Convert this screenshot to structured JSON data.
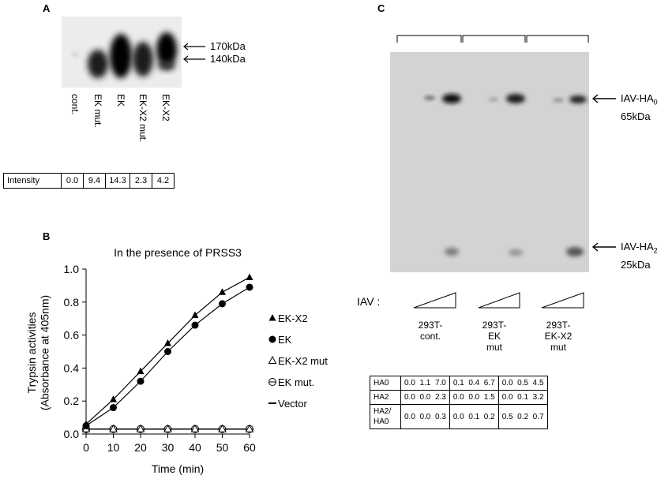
{
  "panelA": {
    "label": "A",
    "markers": [
      "170kDa",
      "140kDa"
    ],
    "lanes": [
      "cont.",
      "EK mut.",
      "EK",
      "EK-X2 mut.",
      "EK-X2"
    ],
    "intensity_label": "Intensity",
    "intensity_values": [
      "0.0",
      "9.4",
      "14.3",
      "2.3",
      "4.2"
    ]
  },
  "panelB": {
    "label": "B",
    "legend": [
      {
        "name": "EK-X2",
        "marker": "filled-triangle"
      },
      {
        "name": "EK",
        "marker": "filled-circle"
      },
      {
        "name": "EK-X2 mut",
        "marker": "open-triangle"
      },
      {
        "name": "EK mut.",
        "marker": "open-circle"
      },
      {
        "name": "Vector",
        "marker": "dash"
      }
    ]
  },
  "chart_data": {
    "type": "line",
    "title": "In the presence of PRSS3",
    "xlabel": "Time (min)",
    "ylabel": "Trypsin activities (Absorbance at 405nm)",
    "x": [
      0,
      10,
      20,
      30,
      40,
      50,
      60
    ],
    "xlim": [
      0,
      60
    ],
    "ylim": [
      0,
      1.0
    ],
    "yticks": [
      "0.0",
      "0.2",
      "0.4",
      "0.6",
      "0.8",
      "1.0"
    ],
    "xticks": [
      "0",
      "10",
      "20",
      "30",
      "40",
      "50",
      "60"
    ],
    "grid": false,
    "legend_placement": "right",
    "series": [
      {
        "name": "EK-X2",
        "values": [
          0.06,
          0.21,
          0.38,
          0.55,
          0.72,
          0.86,
          0.95
        ]
      },
      {
        "name": "EK",
        "values": [
          0.05,
          0.16,
          0.32,
          0.5,
          0.66,
          0.79,
          0.89
        ]
      },
      {
        "name": "EK-X2 mut",
        "values": [
          0.03,
          0.03,
          0.03,
          0.03,
          0.03,
          0.03,
          0.03
        ]
      },
      {
        "name": "EK mut.",
        "values": [
          0.03,
          0.03,
          0.03,
          0.03,
          0.03,
          0.03,
          0.03
        ]
      },
      {
        "name": "Vector",
        "values": [
          0.03,
          0.03,
          0.03,
          0.03,
          0.03,
          0.03,
          0.03
        ]
      }
    ]
  },
  "panelC": {
    "label": "C",
    "band_top": {
      "name_main": "IAV-HA",
      "name_sub": "0",
      "mw": "65kDa"
    },
    "band_bottom": {
      "name_main": "IAV-HA",
      "name_sub": "2",
      "mw": "25kDa"
    },
    "iav_label": "IAV :",
    "groups": [
      [
        "293T-",
        "cont."
      ],
      [
        "293T-",
        "EK",
        "mut"
      ],
      [
        "293T-",
        "EK-X2",
        "mut"
      ]
    ],
    "table": {
      "rows": [
        {
          "label": "HA0",
          "values": [
            [
              "0.0",
              "1.1",
              "7.0"
            ],
            [
              "0.1",
              "0.4",
              "6.7"
            ],
            [
              "0.0",
              "0.5",
              "4.5"
            ]
          ]
        },
        {
          "label": "HA2",
          "values": [
            [
              "0.0",
              "0.0",
              "2.3"
            ],
            [
              "0.0",
              "0.0",
              "1.5"
            ],
            [
              "0.0",
              "0.1",
              "3.2"
            ]
          ]
        },
        {
          "label": "HA2/ HA0",
          "values": [
            [
              "0.0",
              "0.0",
              "0.3"
            ],
            [
              "0.0",
              "0.1",
              "0.2"
            ],
            [
              "0.5",
              "0.2",
              "0.7"
            ]
          ]
        }
      ]
    }
  }
}
